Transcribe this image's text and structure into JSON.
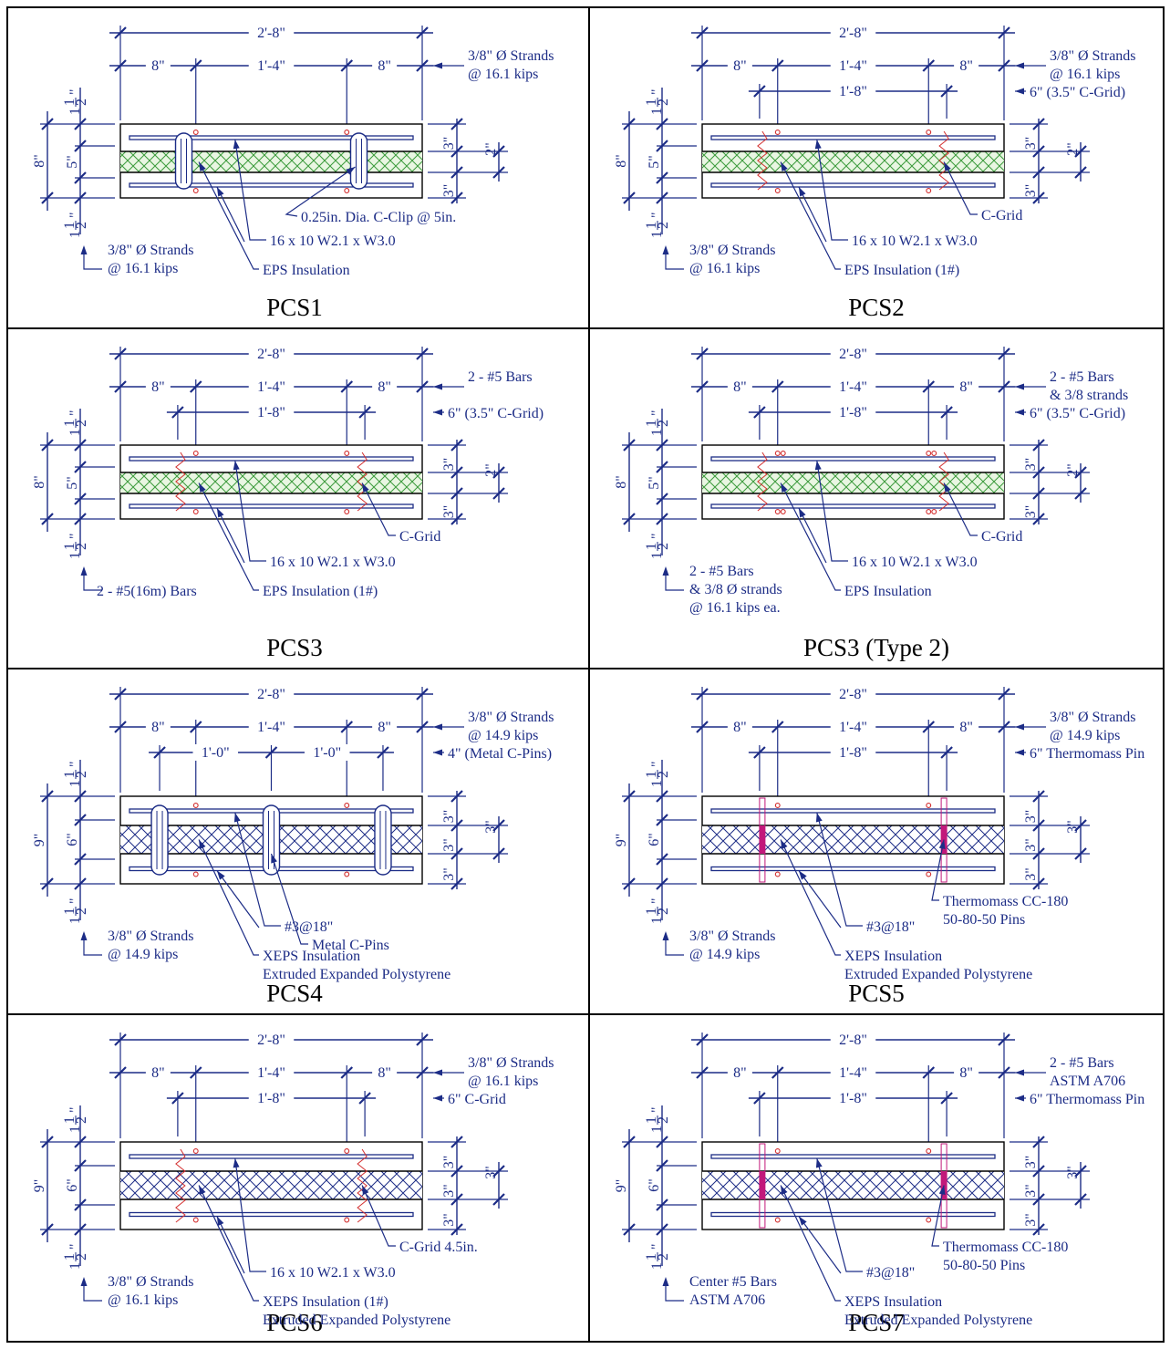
{
  "panels": [
    {
      "title": "PCS1",
      "dims": {
        "overall": "2'-8\"",
        "left": "8\"",
        "middle": "1'-4\"",
        "right": "8\""
      },
      "vertical": {
        "top": "1 1/2\"",
        "total": "8\"",
        "core": "5\"",
        "bottom": "1 1/2\"",
        "wythe_top": "3\"",
        "wythe_bottom": "3\"",
        "ins": "2\""
      },
      "labels": {
        "strands_top": [
          "3/8\" Ø Strands",
          "@ 16.1 kips"
        ],
        "strands_bottom": [
          "3/8\" Ø Strands",
          "@ 16.1 kips"
        ],
        "clip": "0.25in. Dia. C-Clip @ 5in.",
        "mesh": "16 x 10 W2.1 x W3.0",
        "insulation": "EPS Insulation"
      }
    },
    {
      "title": "PCS2",
      "dims": {
        "overall": "2'-8\"",
        "left": "8\"",
        "middle": "1'-4\"",
        "right": "8\"",
        "inner": "1'-8\""
      },
      "vertical": {
        "top": "1 1/2\"",
        "total": "8\"",
        "core": "5\"",
        "bottom": "1 1/2\"",
        "wythe_top": "3\"",
        "wythe_bottom": "3\"",
        "ins": "2\""
      },
      "labels": {
        "strands_top": [
          "3/8\" Ø Strands",
          "@ 16.1 kips"
        ],
        "grid_note": "6\" (3.5\" C-Grid)",
        "strands_bottom": [
          "3/8\" Ø Strands",
          "@ 16.1 kips"
        ],
        "connector": "C-Grid",
        "mesh": "16 x 10 W2.1 x W3.0",
        "insulation": "EPS Insulation (1#)"
      }
    },
    {
      "title": "PCS3",
      "dims": {
        "overall": "2'-8\"",
        "left": "8\"",
        "middle": "1'-4\"",
        "right": "8\"",
        "inner": "1'-8\""
      },
      "vertical": {
        "top": "1 1/2\"",
        "total": "8\"",
        "core": "5\"",
        "bottom": "1 1/2\"",
        "wythe_top": "3\"",
        "wythe_bottom": "3\"",
        "ins": "2\""
      },
      "labels": {
        "bars_top": [
          "2 - #5 Bars"
        ],
        "grid_note": "6\" (3.5\" C-Grid)",
        "bars_bottom": "2 - #5(16m) Bars",
        "connector": "C-Grid",
        "mesh": "16 x 10 W2.1 x W3.0",
        "insulation": "EPS Insulation (1#)"
      }
    },
    {
      "title": "PCS3 (Type 2)",
      "dims": {
        "overall": "2'-8\"",
        "left": "8\"",
        "middle": "1'-4\"",
        "right": "8\"",
        "inner": "1'-8\""
      },
      "vertical": {
        "top": "1 1/2\"",
        "total": "8\"",
        "core": "5\"",
        "bottom": "1 1/2\"",
        "wythe_top": "3\"",
        "wythe_bottom": "3\"",
        "ins": "2\""
      },
      "labels": {
        "bars_top": [
          "2 - #5 Bars",
          "& 3/8 strands"
        ],
        "grid_note": "6\" (3.5\" C-Grid)",
        "bars_bottom": [
          "2 - #5 Bars",
          "& 3/8 Ø strands",
          "@ 16.1 kips ea."
        ],
        "connector": "C-Grid",
        "mesh": "16 x 10 W2.1 x W3.0",
        "insulation": "EPS Insulation"
      }
    },
    {
      "title": "PCS4",
      "dims": {
        "overall": "2'-8\"",
        "left": "8\"",
        "middle": "1'-4\"",
        "right": "8\"",
        "pin1": "1'-0\"",
        "pin2": "1'-0\""
      },
      "vertical": {
        "top": "1 1/2\"",
        "total": "9\"",
        "core": "6\"",
        "bottom": "1 1/2\"",
        "wythe_top": "3\"",
        "mid": "3\"",
        "wythe_bottom": "3\"",
        "ins": "3\""
      },
      "labels": {
        "strands_top": [
          "3/8\" Ø Strands",
          "@ 14.9 kips"
        ],
        "grid_note": "4\" (Metal C-Pins)",
        "strands_bottom": [
          "3/8\" Ø Strands",
          "@ 14.9 kips"
        ],
        "connector": "Metal C-Pins",
        "mesh": "#3@18\"",
        "insulation": [
          "XEPS Insulation",
          "Extruded Expanded Polystyrene"
        ]
      }
    },
    {
      "title": "PCS5",
      "dims": {
        "overall": "2'-8\"",
        "left": "8\"",
        "middle": "1'-4\"",
        "right": "8\"",
        "inner": "1'-8\""
      },
      "vertical": {
        "top": "1 1/2\"",
        "total": "9\"",
        "core": "6\"",
        "bottom": "1 1/2\"",
        "wythe_top": "3\"",
        "mid": "3\"",
        "wythe_bottom": "3\"",
        "ins": "3\""
      },
      "labels": {
        "strands_top": [
          "3/8\" Ø Strands",
          "@ 14.9 kips"
        ],
        "grid_note": "6\" Thermomass Pin",
        "strands_bottom": [
          "3/8\" Ø Strands",
          "@ 14.9 kips"
        ],
        "connector": [
          "Thermomass CC-180",
          "50-80-50 Pins"
        ],
        "mesh": "#3@18\"",
        "insulation": [
          "XEPS Insulation",
          "Extruded Expanded Polystyrene"
        ]
      }
    },
    {
      "title": "PCS6",
      "dims": {
        "overall": "2'-8\"",
        "left": "8\"",
        "middle": "1'-4\"",
        "right": "8\"",
        "inner": "1'-8\""
      },
      "vertical": {
        "top": "1 1/2\"",
        "total": "9\"",
        "core": "6\"",
        "bottom": "1 1/2\"",
        "wythe_top": "3\"",
        "mid": "3\"",
        "wythe_bottom": "3\"",
        "ins": "3\""
      },
      "labels": {
        "strands_top": [
          "3/8\" Ø Strands",
          "@ 16.1 kips"
        ],
        "grid_note": "6\" C-Grid",
        "strands_bottom": [
          "3/8\" Ø Strands",
          "@ 16.1 kips"
        ],
        "connector": "C-Grid 4.5in.",
        "mesh": "16 x 10 W2.1 x W3.0",
        "insulation": [
          "XEPS Insulation (1#)",
          "Extruded Expanded Polystyrene"
        ]
      }
    },
    {
      "title": "PCS7",
      "dims": {
        "overall": "2'-8\"",
        "left": "8\"",
        "middle": "1'-4\"",
        "right": "8\"",
        "inner": "1'-8\""
      },
      "vertical": {
        "top": "1 1/2\"",
        "total": "9\"",
        "core": "6\"",
        "bottom": "1 1/2\"",
        "wythe_top": "3\"",
        "mid": "3\"",
        "wythe_bottom": "3\"",
        "ins": "3\""
      },
      "labels": {
        "bars_top": [
          "2 - #5 Bars",
          "ASTM A706"
        ],
        "grid_note": "6\" Thermomass Pin",
        "bars_bottom": [
          "Center #5 Bars",
          "ASTM A706"
        ],
        "connector": [
          "Thermomass CC-180",
          "50-80-50 Pins"
        ],
        "mesh": "#3@18\"",
        "insulation": [
          "XEPS Insulation",
          "Extruded Expanded Polystyrene"
        ]
      }
    }
  ]
}
